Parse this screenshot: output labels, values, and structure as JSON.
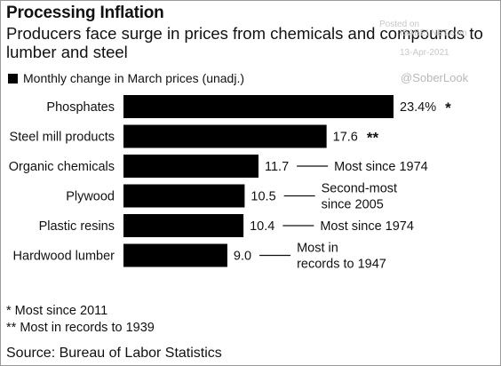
{
  "title": "Processing Inflation",
  "subtitle": "Producers face surge in prices from chemicals and compounds to lumber and steel",
  "legend": "Monthly change in March prices (unadj.)",
  "watermark": {
    "posted": "Posted on",
    "site": "ISABELNET.com",
    "date": "13-Apr-2021",
    "handle": "@SoberLook"
  },
  "footnotes": [
    "* Most since 2011",
    "** Most in records to 1939"
  ],
  "source": "Source: Bureau of Labor Statistics",
  "colors": {
    "bar": "#000000",
    "text": "#111111",
    "watermark": "#c8c8c8"
  },
  "chart_data": {
    "type": "bar",
    "orientation": "horizontal",
    "categories": [
      "Phosphates",
      "Steel mill products",
      "Organic chemicals",
      "Plywood",
      "Plastic resins",
      "Hardwood lumber"
    ],
    "values": [
      23.4,
      17.6,
      11.7,
      10.5,
      10.4,
      9.0
    ],
    "value_labels": [
      "23.4%",
      "17.6",
      "11.7",
      "10.5",
      "10.4",
      "9.0"
    ],
    "markers": [
      "*",
      "**",
      "",
      "",
      "",
      ""
    ],
    "annotations": [
      "",
      "",
      "Most since 1974",
      "Second-most since 2005",
      "Most since 1974",
      "Most in records to 1947"
    ],
    "xlim": [
      0,
      23.4
    ],
    "grid": false
  }
}
